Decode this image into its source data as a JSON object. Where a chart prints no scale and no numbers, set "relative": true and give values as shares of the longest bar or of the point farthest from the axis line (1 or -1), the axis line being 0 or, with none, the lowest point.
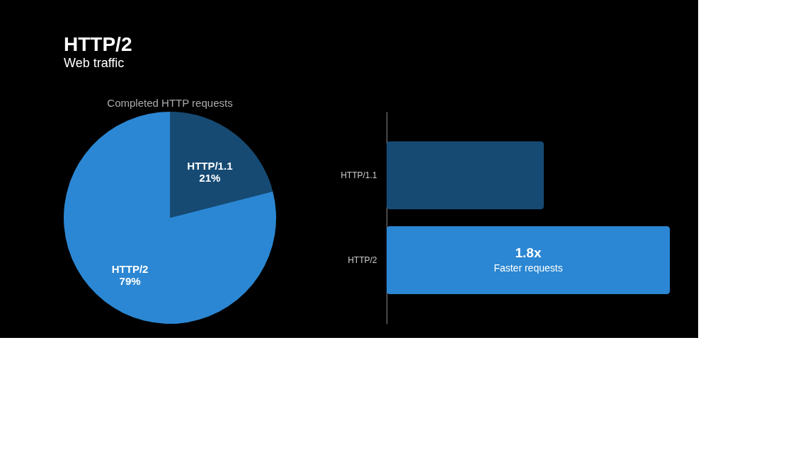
{
  "chart_data": [
    {
      "type": "pie",
      "title": "HTTP/2",
      "subtitle": "Web traffic",
      "annotations": [
        "Completed HTTP requests"
      ],
      "categories": [
        "HTTP/1.1",
        "HTTP/2"
      ],
      "values": [
        21,
        79
      ],
      "colors": [
        "#164a73",
        "#2b87d3"
      ],
      "value_labels": [
        "21%",
        "79%"
      ],
      "legend": false
    },
    {
      "type": "bar",
      "orientation": "horizontal",
      "relative": true,
      "categories": [
        "HTTP/1.1",
        "HTTP/2"
      ],
      "values": [
        0.555,
        1
      ],
      "colors": [
        "#164a73",
        "#2b87d3"
      ],
      "annotations": [
        "1.8x",
        "Faster requests"
      ]
    }
  ]
}
